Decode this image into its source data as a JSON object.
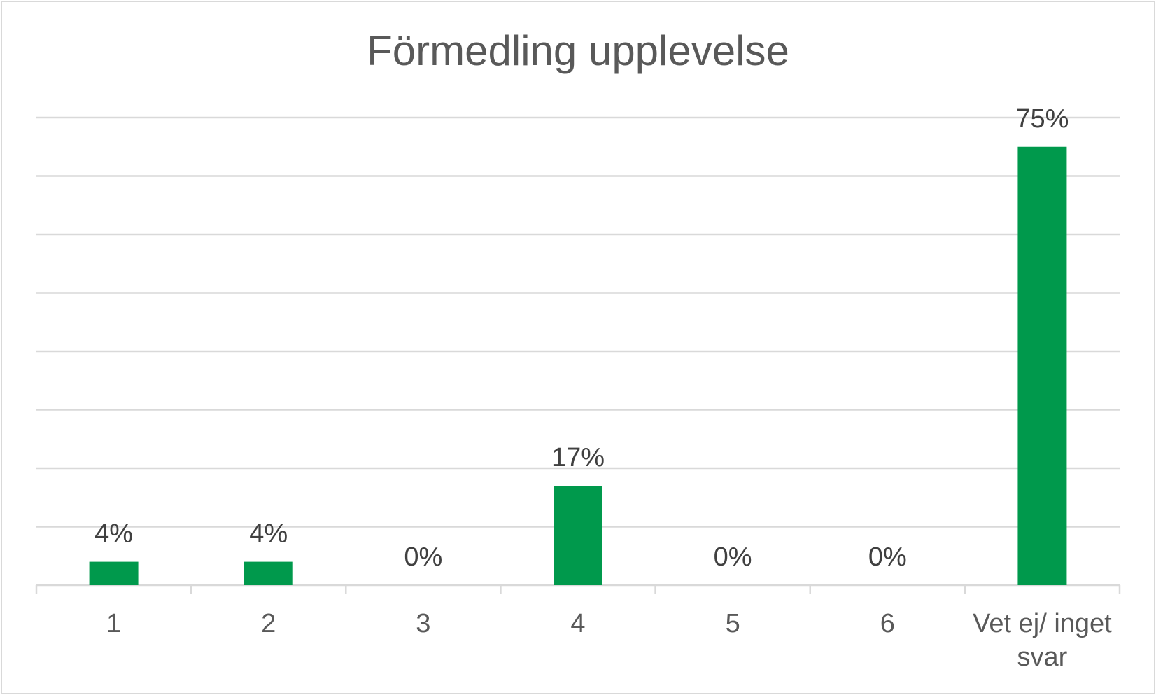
{
  "chart_data": {
    "type": "bar",
    "title": "Förmedling upplevelse",
    "categories": [
      "1",
      "2",
      "3",
      "4",
      "5",
      "6",
      "Vet ej/ inget svar"
    ],
    "category_lines": [
      [
        "1"
      ],
      [
        "2"
      ],
      [
        "3"
      ],
      [
        "4"
      ],
      [
        "5"
      ],
      [
        "6"
      ],
      [
        "Vet ej/ inget",
        "svar"
      ]
    ],
    "values": [
      4,
      4,
      0,
      17,
      0,
      0,
      75
    ],
    "data_labels": [
      "4%",
      "4%",
      "0%",
      "17%",
      "0%",
      "0%",
      "75%"
    ],
    "unit": "%",
    "ylim": [
      0,
      80
    ],
    "gridlines": true,
    "legend": false,
    "bar_color": "#00994c",
    "grid_color": "#d9d9d9"
  }
}
